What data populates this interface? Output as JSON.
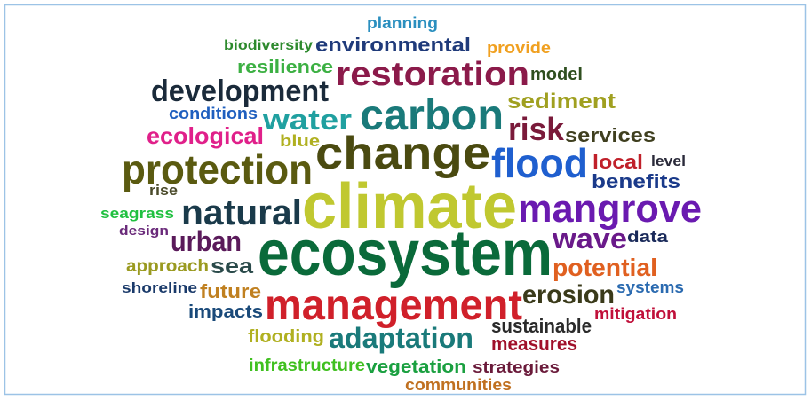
{
  "words": [
    {
      "text": "planning",
      "color": "#2a8fbf"
    },
    {
      "text": "biodiversity",
      "color": "#2d8a2d"
    },
    {
      "text": "environmental",
      "color": "#1f3a7a"
    },
    {
      "text": "provide",
      "color": "#f0a020"
    },
    {
      "text": "resilience",
      "color": "#3cb043"
    },
    {
      "text": "restoration",
      "color": "#8b1a4a"
    },
    {
      "text": "model",
      "color": "#2f4f1f"
    },
    {
      "text": "development",
      "color": "#1a2a3a"
    },
    {
      "text": "carbon",
      "color": "#1a7a7a"
    },
    {
      "text": "sediment",
      "color": "#a0a020"
    },
    {
      "text": "conditions",
      "color": "#1f5fbf"
    },
    {
      "text": "water",
      "color": "#20a0a0"
    },
    {
      "text": "risk",
      "color": "#7a1a3a"
    },
    {
      "text": "services",
      "color": "#3f3f1f"
    },
    {
      "text": "ecological",
      "color": "#e0208a"
    },
    {
      "text": "blue",
      "color": "#b0b020"
    },
    {
      "text": "change",
      "color": "#4a4a10"
    },
    {
      "text": "flood",
      "color": "#1f5fcf"
    },
    {
      "text": "local",
      "color": "#c0202a"
    },
    {
      "text": "level",
      "color": "#2a2a3a"
    },
    {
      "text": "protection",
      "color": "#5a5a10"
    },
    {
      "text": "benefits",
      "color": "#1a3a8a"
    },
    {
      "text": "rise",
      "color": "#4a4a2a"
    },
    {
      "text": "climate",
      "color": "#c0c830"
    },
    {
      "text": "mangrove",
      "color": "#6a1ab0"
    },
    {
      "text": "natural",
      "color": "#1a3a4a"
    },
    {
      "text": "seagrass",
      "color": "#20c040"
    },
    {
      "text": "design",
      "color": "#6a2a7a"
    },
    {
      "text": "urban",
      "color": "#5a1a5a"
    },
    {
      "text": "wave",
      "color": "#6a1a8a"
    },
    {
      "text": "data",
      "color": "#1a2a5a"
    },
    {
      "text": "ecosystem",
      "color": "#0a6a3a"
    },
    {
      "text": "approach",
      "color": "#9a9a20"
    },
    {
      "text": "sea",
      "color": "#2a4a4a"
    },
    {
      "text": "potential",
      "color": "#e06020"
    },
    {
      "text": "shoreline",
      "color": "#1a3a6a"
    },
    {
      "text": "future",
      "color": "#c08020"
    },
    {
      "text": "management",
      "color": "#d0202a"
    },
    {
      "text": "erosion",
      "color": "#3a3a1a"
    },
    {
      "text": "systems",
      "color": "#2a6ab0"
    },
    {
      "text": "impacts",
      "color": "#1a4a7a"
    },
    {
      "text": "mitigation",
      "color": "#c0103a"
    },
    {
      "text": "sustainable",
      "color": "#2a2a2a"
    },
    {
      "text": "flooding",
      "color": "#b0b020"
    },
    {
      "text": "adaptation",
      "color": "#1a7a7a"
    },
    {
      "text": "measures",
      "color": "#a0102a"
    },
    {
      "text": "infrastructure",
      "color": "#40c020"
    },
    {
      "text": "vegetation",
      "color": "#1aa040"
    },
    {
      "text": "strategies",
      "color": "#6a1a3a"
    },
    {
      "text": "communities",
      "color": "#c07020"
    }
  ]
}
